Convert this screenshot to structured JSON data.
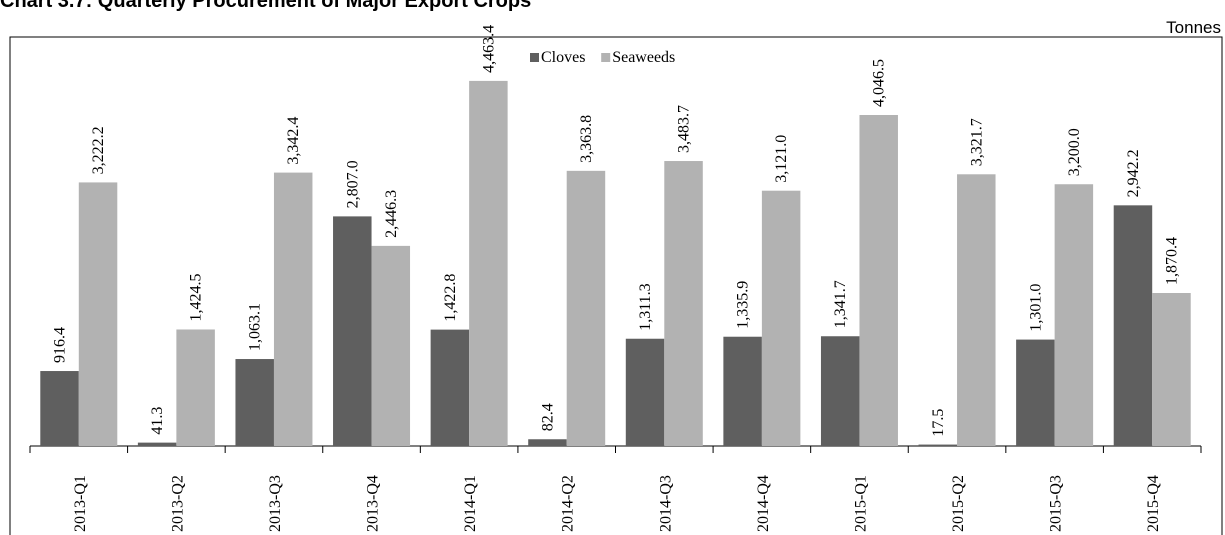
{
  "chart_data": {
    "type": "bar",
    "title": "Chart 3.7: Quarterly Procurement of Major Export Crops",
    "unit": "Tonnes",
    "categories": [
      "2013-Q1",
      "2013-Q2",
      "2013-Q3",
      "2013-Q4",
      "2014-Q1",
      "2014-Q2",
      "2014-Q3",
      "2014-Q4",
      "2015-Q1",
      "2015-Q2",
      "2015-Q3",
      "2015-Q4"
    ],
    "series": [
      {
        "name": "Cloves",
        "color": "#5f5f5f",
        "values": [
          916.4,
          41.3,
          1063.1,
          2807.0,
          1422.8,
          82.4,
          1311.3,
          1335.9,
          1341.7,
          17.5,
          1301.0,
          2942.2
        ],
        "labels": [
          "916.4",
          "41.3",
          "1,063.1",
          "2,807.0",
          "1,422.8",
          "82.4",
          "1,311.3",
          "1,335.9",
          "1,341.7",
          "17.5",
          "1,301.0",
          "2,942.2"
        ]
      },
      {
        "name": "Seaweeds",
        "color": "#b2b2b2",
        "values": [
          3222.2,
          1424.5,
          3342.4,
          2446.3,
          4463.4,
          3363.8,
          3483.7,
          3121.0,
          4046.5,
          3321.7,
          3200.0,
          1870.4
        ],
        "labels": [
          "3,222.2",
          "1,424.5",
          "3,342.4",
          "2,446.3",
          "4,463.4",
          "3,363.8",
          "3,483.7",
          "3,121.0",
          "4,046.5",
          "3,321.7",
          "3,200.0",
          "1,870.4"
        ]
      }
    ],
    "ylim": [
      0,
      5000
    ],
    "legend": "top-center",
    "grid": false
  }
}
